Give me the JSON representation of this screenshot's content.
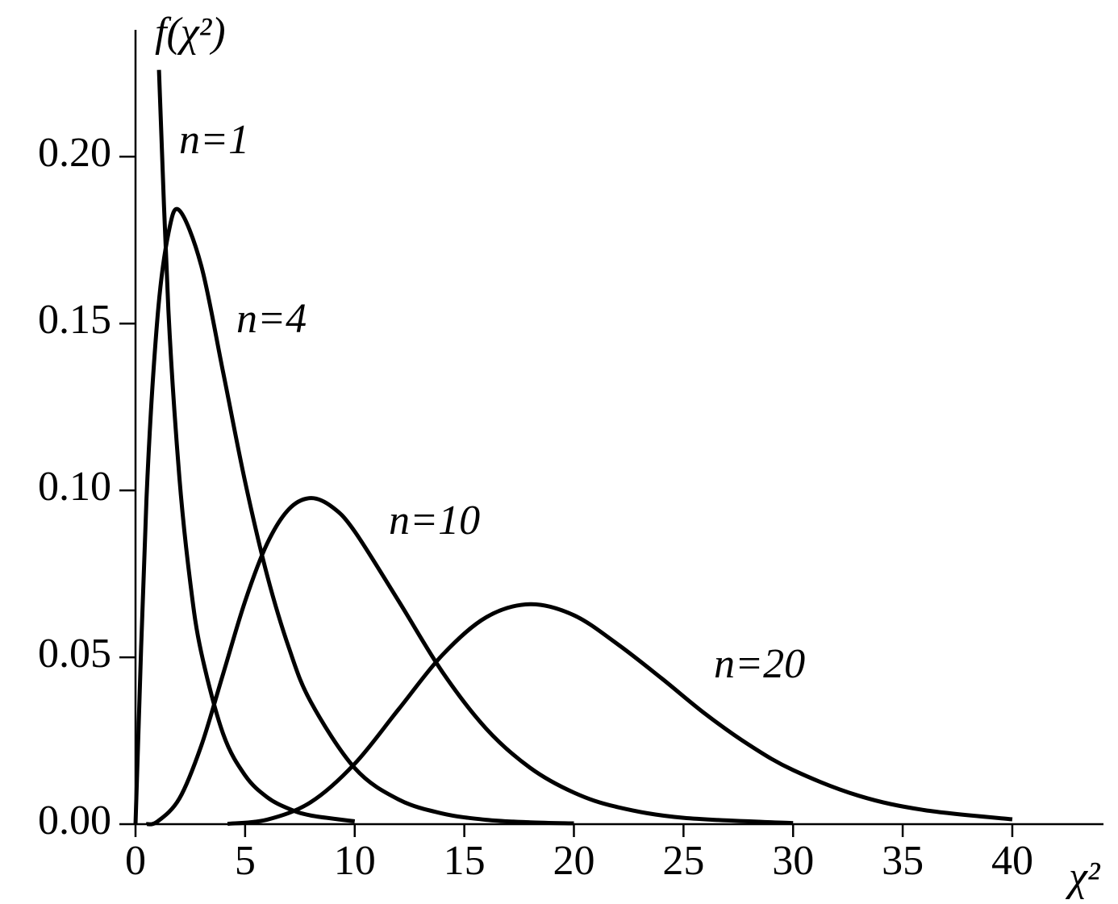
{
  "chart_data": {
    "type": "line",
    "ylabel": "f(χ²)",
    "xlabel": "χ²",
    "xlim": [
      0,
      44.16
    ],
    "ylim": [
      0,
      0.238
    ],
    "xticks": [
      0,
      5,
      10,
      15,
      20,
      25,
      30,
      35,
      40
    ],
    "yticks": [
      {
        "value": 0,
        "label": "0.00"
      },
      0.05,
      {
        "value": 0.1,
        "label": "0.10"
      },
      0.15,
      {
        "value": 0.2,
        "label": "0.20"
      }
    ],
    "grid": false,
    "series": [
      {
        "name": "n=1",
        "color": "#000000",
        "x": [
          1.07,
          1.5,
          2,
          2.5,
          3,
          4,
          5,
          6,
          7,
          8,
          10
        ],
        "values": [
          0.226,
          0.154,
          0.104,
          0.0723,
          0.0514,
          0.027,
          0.0146,
          0.0081,
          0.0046,
          0.0026,
          0.00085
        ]
      },
      {
        "name": "n=4",
        "color": "#000000",
        "x": [
          0,
          0.5,
          1,
          1.5,
          2,
          3,
          4,
          5,
          6,
          7,
          8,
          10,
          12,
          14,
          16,
          18,
          20
        ],
        "values": [
          0,
          0.0974,
          0.1516,
          0.177,
          0.1839,
          0.1673,
          0.1353,
          0.1026,
          0.0747,
          0.0528,
          0.0366,
          0.0168,
          0.0074,
          0.0032,
          0.0013,
          0.00055,
          0.00023
        ]
      },
      {
        "name": "n=10",
        "color": "#000000",
        "x": [
          0.5,
          1,
          2,
          3,
          4,
          5,
          6,
          7,
          8,
          9,
          10,
          12,
          14,
          16,
          18,
          20,
          22,
          25,
          30
        ],
        "values": [
          0,
          0.00079,
          0.00766,
          0.0235,
          0.0451,
          0.0668,
          0.084,
          0.0944,
          0.0977,
          0.0949,
          0.0877,
          0.0669,
          0.0456,
          0.0286,
          0.0169,
          0.00946,
          0.0051,
          0.0019,
          0.00032
        ]
      },
      {
        "name": "n=20",
        "color": "#000000",
        "x": [
          4.2,
          6,
          8,
          10,
          12,
          14,
          16,
          18,
          20,
          22,
          24,
          26,
          28,
          30,
          33,
          36,
          40
        ],
        "values": [
          0.0001,
          0.00135,
          0.00661,
          0.0181,
          0.0344,
          0.0507,
          0.062,
          0.0659,
          0.0626,
          0.0539,
          0.0437,
          0.033,
          0.0237,
          0.0162,
          0.0085,
          0.0042,
          0.00145
        ]
      }
    ]
  }
}
